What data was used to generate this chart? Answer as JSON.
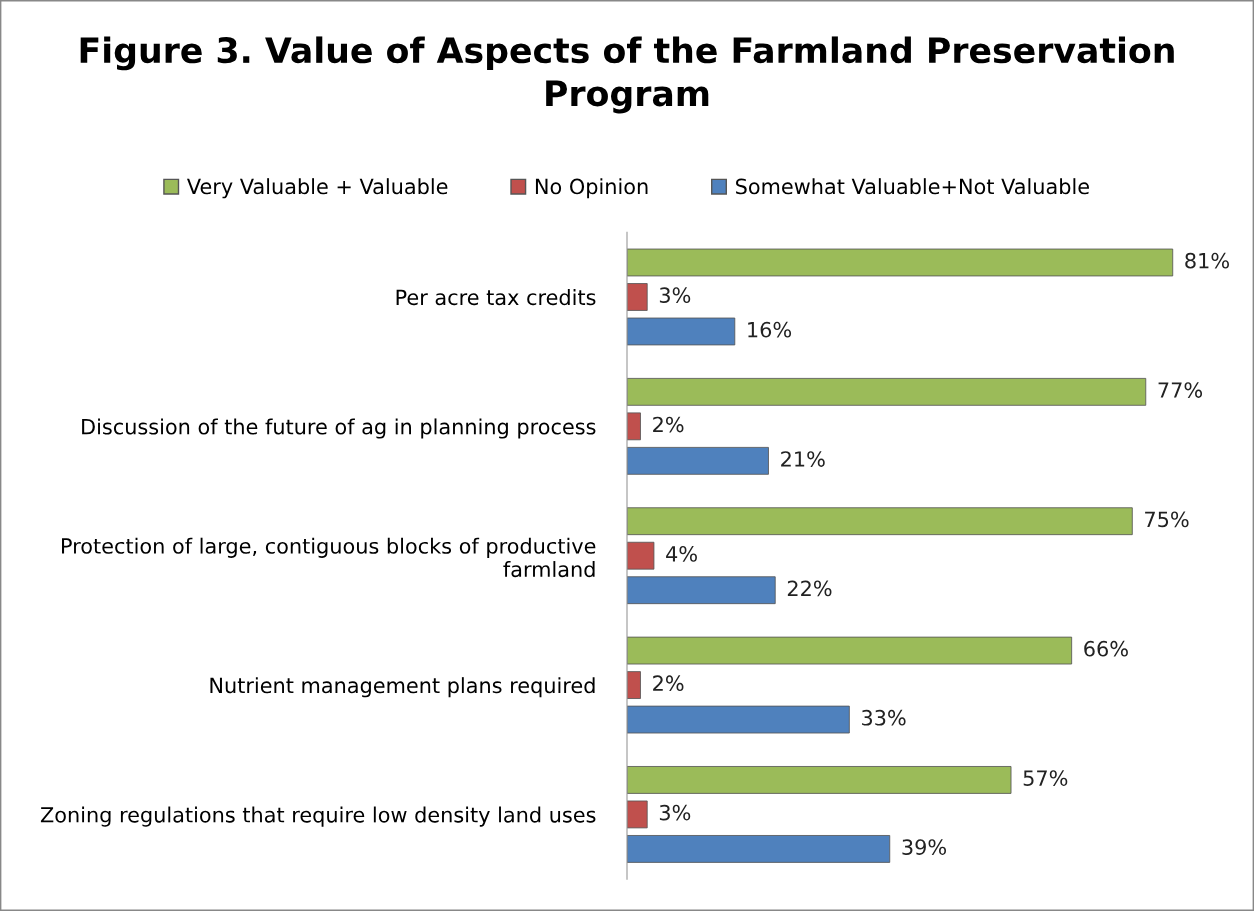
{
  "chart_data": {
    "type": "bar",
    "orientation": "horizontal",
    "title": "Figure 3. Value of Aspects of the Farmland Preservation\nProgram",
    "categories": [
      "Per acre tax credits",
      "Discussion of the future of ag in planning process",
      "Protection of large, contiguous blocks of productive\nfarmland",
      "Nutrient management plans required",
      "Zoning regulations that require low density land uses"
    ],
    "series": [
      {
        "name": "Very Valuable + Valuable",
        "color": "#9bbb59",
        "values": [
          81,
          77,
          75,
          66,
          57
        ],
        "value_labels": [
          "81%",
          "77%",
          "75%",
          "66%",
          "57%"
        ]
      },
      {
        "name": "No Opinion",
        "color": "#c0504d",
        "values": [
          3,
          2,
          4,
          2,
          3
        ],
        "value_labels": [
          "3%",
          "2%",
          "4%",
          "2%",
          "3%"
        ]
      },
      {
        "name": "Somewhat Valuable+Not Valuable",
        "color": "#4f81bd",
        "values": [
          16,
          21,
          22,
          33,
          39
        ],
        "value_labels": [
          "16%",
          "21%",
          "22%",
          "33%",
          "39%"
        ]
      }
    ],
    "legend": "top",
    "grid": false,
    "tick_labels": "y"
  }
}
